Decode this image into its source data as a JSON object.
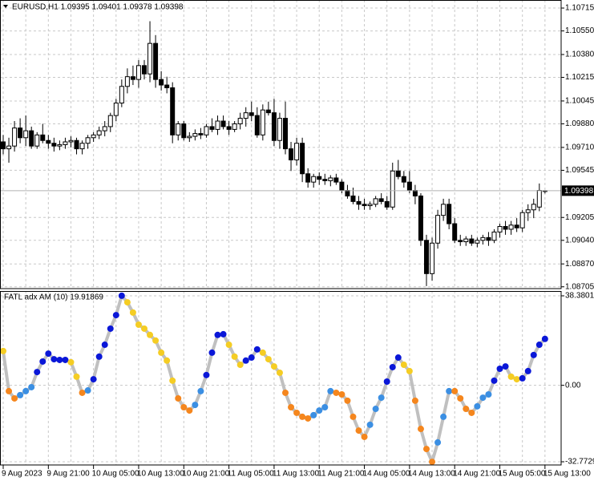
{
  "chart_data": [
    {
      "type": "candlestick",
      "title": "EURUSD,H1  1.09395 1.09401 1.09378 1.09398",
      "categories": [
        "9 Aug 2023",
        null,
        null,
        null,
        null,
        null,
        null,
        null,
        "9 Aug 21:00",
        null,
        null,
        null,
        null,
        null,
        null,
        null,
        "10 Aug 05:00",
        null,
        null,
        null,
        null,
        null,
        null,
        null,
        "10 Aug 13:00",
        null,
        null,
        null,
        null,
        null,
        null,
        null,
        "10 Aug 21:00",
        null,
        null,
        null,
        null,
        null,
        null,
        null,
        "11 Aug 05:00",
        null,
        null,
        null,
        null,
        null,
        null,
        null,
        "11 Aug 13:00",
        null,
        null,
        null,
        null,
        null,
        null,
        null,
        "11 Aug 21:00",
        null,
        null,
        null,
        null,
        null,
        null,
        null,
        "14 Aug 05:00",
        null,
        null,
        null,
        null,
        null,
        null,
        null,
        "14 Aug 13:00",
        null,
        null,
        null,
        null,
        null,
        null,
        null,
        "14 Aug 21:00",
        null,
        null,
        null,
        null,
        null,
        null,
        null,
        "15 Aug 05:00",
        null,
        null,
        null,
        null,
        null,
        null,
        null,
        "15 Aug 13:00"
      ],
      "open": [
        1.0975,
        1.097,
        1.0972,
        1.0985,
        1.0978,
        1.0983,
        1.0972,
        1.098,
        1.0976,
        1.0974,
        1.0972,
        1.0973,
        1.0975,
        1.0976,
        1.097,
        1.0974,
        1.0978,
        1.098,
        1.0983,
        1.0986,
        1.0994,
        1.1003,
        1.1015,
        1.1022,
        1.102,
        1.103,
        1.1024,
        1.1046,
        1.102,
        1.1016,
        1.1014,
        1.098,
        1.0988,
        1.0978,
        1.0979,
        1.0981,
        1.098,
        1.0986,
        1.0984,
        1.099,
        1.0986,
        1.0984,
        1.0988,
        1.0992,
        1.0996,
        1.0994,
        1.098,
        1.0998,
        1.0996,
        1.0976,
        1.0992,
        1.097,
        1.0962,
        1.0974,
        1.0952,
        1.0946,
        1.095,
        1.0948,
        1.0947,
        1.0949,
        1.0946,
        1.094,
        1.0936,
        1.0932,
        1.093,
        1.0929,
        1.093,
        1.0934,
        1.0932,
        1.0928,
        1.0954,
        1.095,
        1.0946,
        1.094,
        1.0936,
        1.0904,
        1.088,
        1.0902,
        1.0922,
        1.093,
        1.0916,
        1.0904,
        1.0903,
        1.0905,
        1.0902,
        1.0904,
        1.0906,
        1.0904,
        1.091,
        1.0914,
        1.0912,
        1.0915,
        1.0913,
        1.0924,
        1.0926,
        1.0928,
        1.09395
      ],
      "high": [
        1.098,
        1.0978,
        1.099,
        1.0992,
        1.0994,
        1.0986,
        1.0982,
        1.0988,
        1.098,
        1.0978,
        1.0976,
        1.0978,
        1.0979,
        1.0978,
        1.0976,
        1.098,
        1.0982,
        1.0986,
        1.099,
        1.0996,
        1.1006,
        1.102,
        1.1028,
        1.103,
        1.1034,
        1.1034,
        1.1062,
        1.1052,
        1.1026,
        1.1022,
        1.1018,
        1.099,
        1.099,
        1.0982,
        1.0984,
        1.0985,
        1.0988,
        1.0992,
        1.0994,
        1.0994,
        1.099,
        1.099,
        1.0996,
        1.1,
        1.1004,
        1.1,
        1.1002,
        1.1004,
        1.1006,
        1.0996,
        1.1004,
        1.0975,
        1.0978,
        1.0978,
        1.0956,
        1.0952,
        1.0953,
        1.0952,
        1.0951,
        1.0952,
        1.0948,
        1.0944,
        1.0942,
        1.0936,
        1.0934,
        1.0932,
        1.0936,
        1.0938,
        1.0936,
        1.096,
        1.0962,
        1.0954,
        1.0954,
        1.0944,
        1.0938,
        1.0908,
        1.0906,
        1.0926,
        1.0934,
        1.0934,
        1.092,
        1.0908,
        1.0907,
        1.0908,
        1.0906,
        1.0908,
        1.091,
        1.0912,
        1.0916,
        1.0918,
        1.0918,
        1.092,
        1.0926,
        1.093,
        1.0934,
        1.0945,
        1.09401
      ],
      "low": [
        1.0966,
        1.096,
        1.0968,
        1.0974,
        1.0972,
        1.097,
        1.097,
        1.0974,
        1.097,
        1.0968,
        1.0969,
        1.097,
        1.0971,
        1.0966,
        1.0966,
        1.097,
        1.0975,
        1.0977,
        1.0979,
        1.0982,
        1.099,
        1.1,
        1.101,
        1.1016,
        1.1014,
        1.102,
        1.1018,
        1.1014,
        1.1012,
        1.101,
        1.0974,
        1.0976,
        1.0976,
        1.0975,
        1.0976,
        1.0977,
        1.0978,
        1.0982,
        1.098,
        1.0984,
        1.098,
        1.0982,
        1.0984,
        1.0986,
        1.099,
        1.0978,
        1.0976,
        1.0994,
        1.0972,
        1.097,
        1.0966,
        1.0954,
        1.0958,
        1.0946,
        1.0942,
        1.0942,
        1.0944,
        1.0944,
        1.0943,
        1.0944,
        1.0938,
        1.0934,
        1.093,
        1.0926,
        1.0926,
        1.0926,
        1.0928,
        1.093,
        1.0926,
        1.0926,
        1.0948,
        1.0942,
        1.0938,
        1.093,
        1.09,
        1.0871,
        1.0875,
        1.0898,
        1.0918,
        1.0912,
        1.0902,
        1.09,
        1.09,
        1.09,
        1.0899,
        1.0901,
        1.09,
        1.0902,
        1.0906,
        1.0908,
        1.0908,
        1.091,
        1.091,
        1.0918,
        1.092,
        1.0925,
        1.09378
      ],
      "close": [
        1.097,
        1.0972,
        1.0985,
        1.0978,
        1.0983,
        1.0972,
        1.098,
        1.0976,
        1.0974,
        1.0972,
        1.0973,
        1.0975,
        1.0976,
        1.097,
        1.0974,
        1.0978,
        1.098,
        1.0983,
        1.0986,
        1.0994,
        1.1003,
        1.1015,
        1.1022,
        1.102,
        1.103,
        1.1024,
        1.1046,
        1.102,
        1.1016,
        1.1014,
        1.098,
        1.0988,
        1.0978,
        1.0979,
        1.0981,
        1.098,
        1.0986,
        1.0984,
        1.099,
        1.0986,
        1.0984,
        1.0988,
        1.0992,
        1.0996,
        1.0994,
        1.098,
        1.0998,
        1.0996,
        1.0976,
        1.0992,
        1.097,
        1.0962,
        1.0974,
        1.0952,
        1.0946,
        1.095,
        1.0948,
        1.0947,
        1.0949,
        1.0946,
        1.094,
        1.0936,
        1.0932,
        1.093,
        1.0929,
        1.093,
        1.0934,
        1.0932,
        1.0928,
        1.0954,
        1.095,
        1.0946,
        1.094,
        1.0936,
        1.0904,
        1.088,
        1.0902,
        1.0922,
        1.093,
        1.0916,
        1.0904,
        1.0903,
        1.0905,
        1.0902,
        1.0904,
        1.0906,
        1.0904,
        1.091,
        1.0914,
        1.0912,
        1.0915,
        1.0913,
        1.0924,
        1.0926,
        1.093,
        1.094,
        1.09398
      ],
      "up_color": "#ffffff",
      "down_color": "#000000",
      "ylim": [
        1.08692,
        1.10773
      ],
      "yticks": [
        1.08705,
        {
          "value": 1.0887,
          "label": "1.08870"
        },
        {
          "value": 1.0904,
          "label": "1.09040"
        },
        1.09205,
        1.09545,
        {
          "value": 1.0971,
          "label": "1.09710"
        },
        {
          "value": 1.0988,
          "label": "1.09880"
        },
        1.10045,
        1.10215,
        {
          "value": 1.1038,
          "label": "1.10380"
        },
        {
          "value": 1.1055,
          "label": "1.10550"
        },
        1.10715
      ],
      "current_price": 1.09398,
      "grid": true
    },
    {
      "type": "line",
      "title": "FATL adx AM (10) 19.91869",
      "values": [
        14.7,
        -2.5,
        -5.6,
        -4.2,
        -2.5,
        -0.8,
        5.7,
        10.2,
        13.6,
        11.2,
        10.9,
        10.9,
        9.9,
        3.7,
        -3.2,
        -2.2,
        2.6,
        12.3,
        17.4,
        24.3,
        30.1,
        38.4,
        35.6,
        31.2,
        26.0,
        24.3,
        21.6,
        19.2,
        14.0,
        10.6,
        2.0,
        -5.6,
        -9.4,
        -10.8,
        -8.4,
        -2.5,
        4.4,
        14.0,
        21.6,
        21.9,
        17.4,
        12.3,
        8.8,
        10.6,
        11.9,
        15.4,
        14.0,
        11.2,
        8.1,
        5.4,
        -3.2,
        -9.4,
        -11.8,
        -13.5,
        -14.2,
        -12.8,
        -10.8,
        -9.4,
        -2.5,
        -3.2,
        -3.9,
        -6.6,
        -13.5,
        -19.4,
        -22.1,
        -16.9,
        -10.1,
        -5.3,
        1.6,
        7.8,
        11.9,
        8.8,
        6.1,
        -6.6,
        -18.7,
        -27.3,
        -32.8,
        -24.5,
        -13.5,
        -2.5,
        -2.5,
        -5.6,
        -10.1,
        -11.8,
        -9.0,
        -5.3,
        -3.9,
        2.0,
        7.1,
        8.1,
        3.7,
        2.6,
        3.0,
        6.1,
        13.0,
        17.4,
        19.9
      ],
      "color": "#c0c0c0",
      "marker_colors": [
        "#f5cd23",
        "#f5861d",
        "#f5861d",
        "#3b8fe3",
        "#3b8fe3",
        "#3b8fe3",
        "#0a17d8",
        "#0a17d8",
        "#0a17d8",
        "#0a17d8",
        "#0a17d8",
        "#0a17d8",
        "#f5cd23",
        "#f5cd23",
        "#f5861d",
        "#3b8fe3",
        "#0a17d8",
        "#0a17d8",
        "#0a17d8",
        "#0a17d8",
        "#0a17d8",
        "#0a17d8",
        "#f5cd23",
        "#f5cd23",
        "#f5cd23",
        "#f5cd23",
        "#f5cd23",
        "#f5cd23",
        "#f5cd23",
        "#f5cd23",
        "#f5cd23",
        "#f5861d",
        "#f5861d",
        "#f5861d",
        "#3b8fe3",
        "#3b8fe3",
        "#0a17d8",
        "#0a17d8",
        "#0a17d8",
        "#0a17d8",
        "#f5cd23",
        "#f5cd23",
        "#f5cd23",
        "#0a17d8",
        "#0a17d8",
        "#0a17d8",
        "#f5cd23",
        "#f5cd23",
        "#f5cd23",
        "#f5cd23",
        "#f5861d",
        "#f5861d",
        "#f5861d",
        "#f5861d",
        "#f5861d",
        "#3b8fe3",
        "#3b8fe3",
        "#3b8fe3",
        "#3b8fe3",
        "#f5861d",
        "#f5861d",
        "#f5861d",
        "#f5861d",
        "#f5861d",
        "#f5861d",
        "#3b8fe3",
        "#3b8fe3",
        "#3b8fe3",
        "#0a17d8",
        "#0a17d8",
        "#0a17d8",
        "#f5cd23",
        "#f5cd23",
        "#f5861d",
        "#f5861d",
        "#f5861d",
        "#f5861d",
        "#3b8fe3",
        "#3b8fe3",
        "#3b8fe3",
        "#f5861d",
        "#f5861d",
        "#f5861d",
        "#f5861d",
        "#3b8fe3",
        "#3b8fe3",
        "#3b8fe3",
        "#0a17d8",
        "#0a17d8",
        "#0a17d8",
        "#f5cd23",
        "#f5cd23",
        "#0a17d8",
        "#0a17d8",
        "#0a17d8",
        "#0a17d8",
        "#0a17d8"
      ],
      "ylim": [
        -34.15,
        40.44
      ],
      "yticks": [
        -32.77293,
        {
          "value": 0,
          "label": "0.00"
        },
        38.38011
      ],
      "grid": true
    }
  ]
}
